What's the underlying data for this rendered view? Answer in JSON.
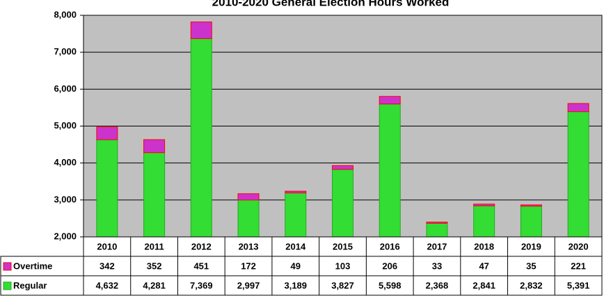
{
  "chart_data": {
    "type": "stacked_bar_with_table",
    "title": "2010-2020 General Election Hours Worked",
    "categories": [
      "2010",
      "2011",
      "2012",
      "2013",
      "2014",
      "2015",
      "2016",
      "2017",
      "2018",
      "2019",
      "2020"
    ],
    "series": [
      {
        "name": "Overtime",
        "color": "#cc33cc",
        "values": [
          342,
          352,
          451,
          172,
          49,
          103,
          206,
          33,
          47,
          35,
          221
        ]
      },
      {
        "name": "Regular",
        "color": "#33dd33",
        "values": [
          4632,
          4281,
          7369,
          2997,
          3189,
          3827,
          5598,
          2368,
          2841,
          2832,
          5391
        ],
        "value_labels": [
          "4,632",
          "4,281",
          "7,369",
          "2,997",
          "3,189",
          "3,827",
          "5,598",
          "2,368",
          "2,841",
          "2,832",
          "5,391"
        ]
      }
    ],
    "ylim": [
      2000,
      8000
    ],
    "yticks": [
      {
        "value": 2000,
        "label": "2,000"
      },
      {
        "value": 3000,
        "label": "3,000"
      },
      {
        "value": 4000,
        "label": "4,000"
      },
      {
        "value": 5000,
        "label": "5,000"
      },
      {
        "value": 6000,
        "label": "6,000"
      },
      {
        "value": 7000,
        "label": "7,000"
      },
      {
        "value": 8000,
        "label": "8,000"
      }
    ],
    "grid": true
  }
}
